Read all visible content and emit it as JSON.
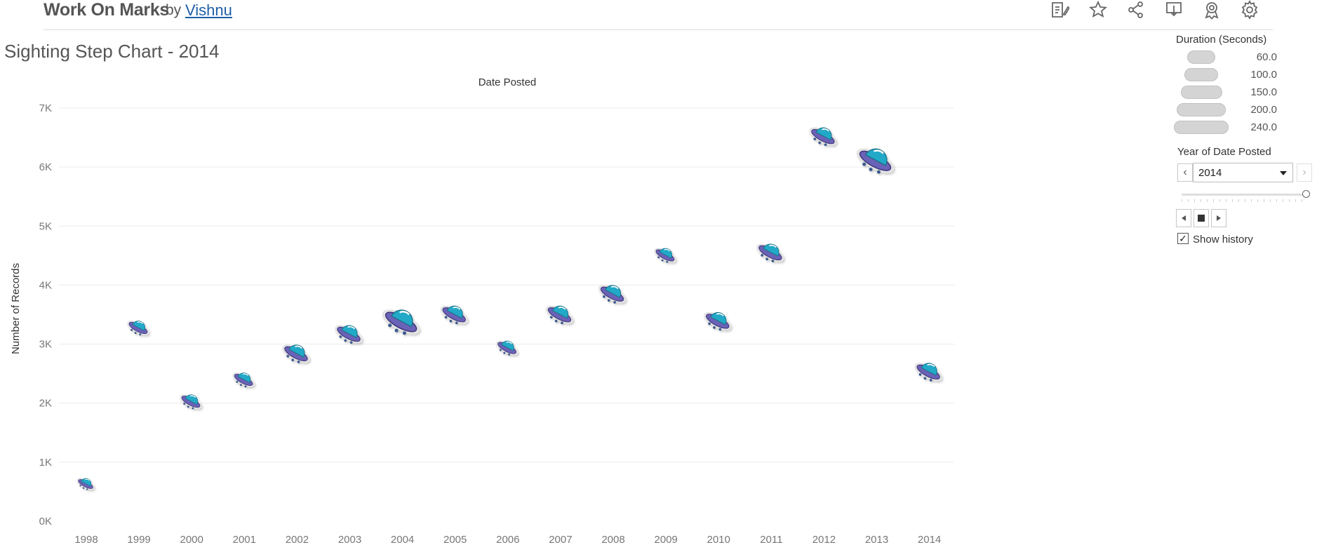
{
  "header": {
    "title": "Work On Marks",
    "by": "by",
    "author": "Vishnu",
    "toolbar": [
      "edit-icon",
      "star-icon",
      "share-icon",
      "download-icon",
      "badge-icon",
      "gear-icon"
    ]
  },
  "legend": {
    "title": "Duration (Seconds)",
    "items": [
      {
        "label": "60.0",
        "value": 60
      },
      {
        "label": "100.0",
        "value": 100
      },
      {
        "label": "150.0",
        "value": 150
      },
      {
        "label": "200.0",
        "value": 200
      },
      {
        "label": "240.0",
        "value": 240
      }
    ]
  },
  "filter": {
    "title": "Year of Date Posted",
    "selected": "2014",
    "prev_symbol": "‹",
    "next_symbol": "›",
    "show_history_label": "Show history",
    "show_history_checked": true,
    "check_symbol": "✓"
  },
  "chart_data": {
    "type": "scatter",
    "title": "Sighting Step Chart - 2014",
    "xlabel": "Date Posted",
    "ylabel": "Number of Records",
    "categories": [
      "1998",
      "1999",
      "2000",
      "2001",
      "2002",
      "2003",
      "2004",
      "2005",
      "2006",
      "2007",
      "2008",
      "2009",
      "2010",
      "2011",
      "2012",
      "2013",
      "2014"
    ],
    "values": [
      650,
      3300,
      2050,
      2420,
      2870,
      3200,
      3420,
      3530,
      2960,
      3530,
      3880,
      4530,
      3420,
      4580,
      6550,
      6150,
      2560
    ],
    "durations": [
      60,
      100,
      100,
      100,
      150,
      150,
      240,
      150,
      100,
      150,
      150,
      100,
      150,
      150,
      150,
      240,
      150
    ],
    "ylim": [
      0,
      7000
    ],
    "yticks": [
      0,
      1000,
      2000,
      3000,
      4000,
      5000,
      6000,
      7000
    ],
    "ytick_labels": [
      "0K",
      "1K",
      "2K",
      "3K",
      "4K",
      "5K",
      "6K",
      "7K"
    ],
    "grid": true,
    "colors": {
      "dome": "#21a9c8",
      "rim": "#6a62b6",
      "outline": "#3d3478",
      "grid": "#ececec"
    }
  }
}
